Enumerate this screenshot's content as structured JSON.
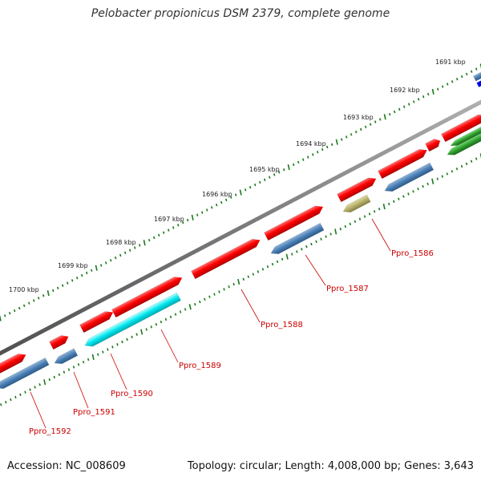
{
  "header": {
    "title": "Pelobacter propionicus DSM 2379, complete genome"
  },
  "footer": {
    "accession": "Accession: NC_008609",
    "summary": "Topology: circular; Length: 4,008,000 bp; Genes: 3,643"
  },
  "ruler": {
    "tick_labels": [
      "1691 kbp",
      "1692 kbp",
      "1693 kbp",
      "1694 kbp",
      "1695 kbp",
      "1696 kbp",
      "1697 kbp",
      "1698 kbp",
      "1699 kbp",
      "1700 kbp"
    ],
    "tick_color": "#1a7a1a"
  },
  "backbone_color": "#808080",
  "colors": {
    "forward_gene": "#ff0000",
    "reverse_gene": "#4a7fb5",
    "cyan_gene": "#00e5ee",
    "olive_gene": "#b5b06a",
    "green_gene": "#2ea02e",
    "blue_gene": "#0000ee",
    "label_red": "#cc0000"
  },
  "gene_labels": [
    "Ppro_1586",
    "Ppro_1587",
    "Ppro_1588",
    "Ppro_1589",
    "Ppro_1590",
    "Ppro_1591",
    "Ppro_1592"
  ]
}
